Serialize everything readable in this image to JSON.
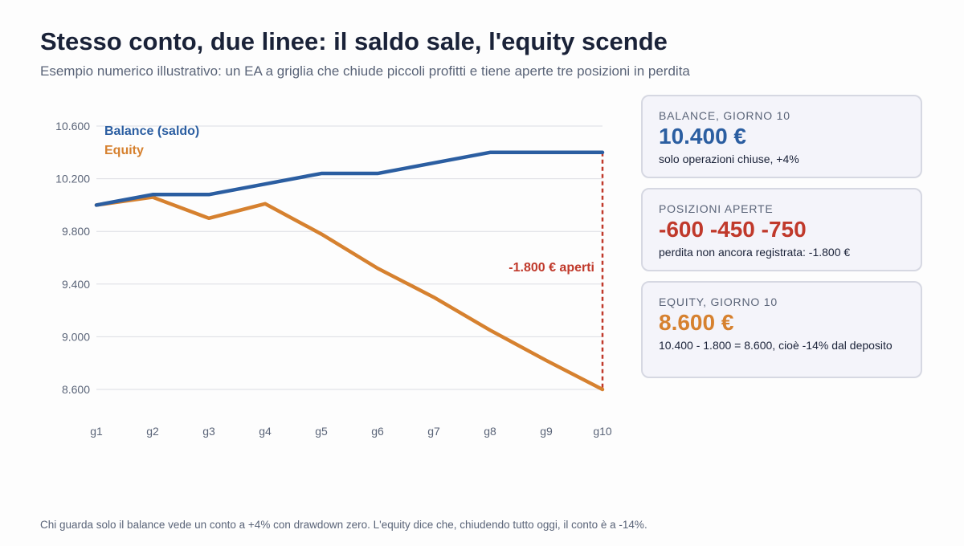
{
  "title": "Stesso conto, due linee: il saldo sale, l'equity scende",
  "subtitle": "Esempio numerico illustrativo: un EA a griglia che chiude piccoli profitti e tiene aperte tre posizioni in perdita",
  "colors": {
    "balance": "#2b5ea1",
    "equity": "#d6812f",
    "loss": "#c0392b",
    "grid": "#dcdde3",
    "tick_text": "#5a6478"
  },
  "chart_data": {
    "type": "line",
    "x": [
      "g1",
      "g2",
      "g3",
      "g4",
      "g5",
      "g6",
      "g7",
      "g8",
      "g9",
      "g10"
    ],
    "ylim": [
      8400,
      10800
    ],
    "yticks": [
      8600,
      9000,
      9400,
      9800,
      10200,
      10600
    ],
    "ytick_labels": [
      "8.600",
      "9.000",
      "9.400",
      "9.800",
      "10.200",
      "10.600"
    ],
    "grid": true,
    "legend": "top-left",
    "series": [
      {
        "name": "Balance (saldo)",
        "key": "balance",
        "values": [
          10000,
          10080,
          10080,
          10160,
          10240,
          10240,
          10320,
          10400,
          10400,
          10400
        ]
      },
      {
        "name": "Equity",
        "key": "equity",
        "values": [
          10000,
          10060,
          9900,
          10010,
          9780,
          9520,
          9300,
          9050,
          8820,
          8600
        ]
      }
    ],
    "annotation": {
      "text": "-1.800 € aperti",
      "x": "g10",
      "from": 10400,
      "to": 8600
    }
  },
  "cards": [
    {
      "label": "BALANCE, GIORNO 10",
      "value": "10.400 €",
      "note": "solo operazioni chiuse, +4%",
      "color": "#2b5ea1"
    },
    {
      "label": "POSIZIONI APERTE",
      "value": "-600 -450 -750",
      "note": "perdita non ancora registrata: -1.800 €",
      "color": "#c0392b"
    },
    {
      "label": "EQUITY, GIORNO 10",
      "value": "8.600 €",
      "note": "10.400 - 1.800 = 8.600, cioè -14% dal deposito",
      "color": "#d6812f"
    }
  ],
  "footer": "Chi guarda solo il balance vede un conto a +4% con drawdown zero. L'equity dice che, chiudendo tutto oggi, il conto è a -14%."
}
